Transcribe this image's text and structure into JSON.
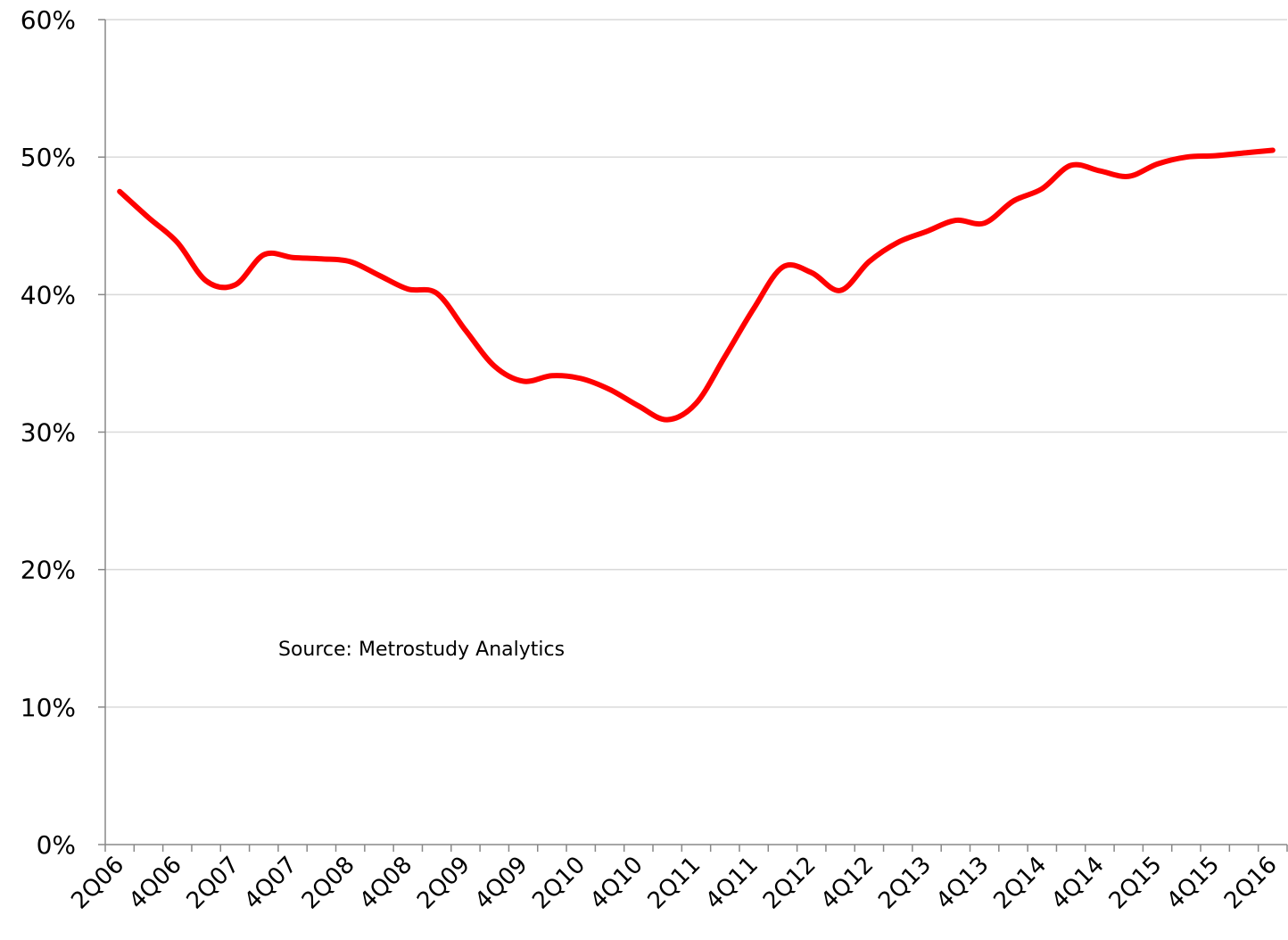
{
  "chart_data": {
    "type": "line",
    "categories": [
      "2Q06",
      null,
      "4Q06",
      null,
      "2Q07",
      null,
      "4Q07",
      null,
      "2Q08",
      null,
      "4Q08",
      null,
      "2Q09",
      null,
      "4Q09",
      null,
      "2Q10",
      null,
      "4Q10",
      null,
      "2Q11",
      null,
      "4Q11",
      null,
      "2Q12",
      null,
      "4Q12",
      null,
      "2Q13",
      null,
      "4Q13",
      null,
      "2Q14",
      null,
      "4Q14",
      null,
      "2Q15",
      null,
      "4Q15",
      null,
      "2Q16"
    ],
    "series": [
      {
        "color": "#ff0000",
        "values": [
          47.5,
          45.6,
          43.8,
          41.0,
          40.7,
          42.9,
          42.7,
          42.6,
          42.4,
          41.4,
          40.4,
          40.1,
          37.4,
          34.8,
          33.7,
          34.1,
          33.9,
          33.1,
          31.9,
          30.9,
          32.1,
          35.5,
          39.0,
          42.0,
          41.6,
          40.3,
          42.4,
          43.8,
          44.6,
          45.4,
          45.2,
          46.8,
          47.7,
          49.4,
          49.0,
          48.6,
          49.5,
          50.0,
          50.1,
          50.3,
          50.5
        ]
      }
    ],
    "ylim": [
      0,
      60
    ],
    "yticks": [
      {
        "value": 0,
        "label": "0%"
      },
      {
        "value": 10,
        "label": "10%"
      },
      {
        "value": 20,
        "label": "20%"
      },
      {
        "value": 30,
        "label": "30%"
      },
      {
        "value": 40,
        "label": "40%"
      },
      {
        "value": 50,
        "label": "50%"
      },
      {
        "value": 60,
        "label": "60%"
      }
    ],
    "grid": true,
    "annotation": "Source: Metrostudy Analytics"
  }
}
